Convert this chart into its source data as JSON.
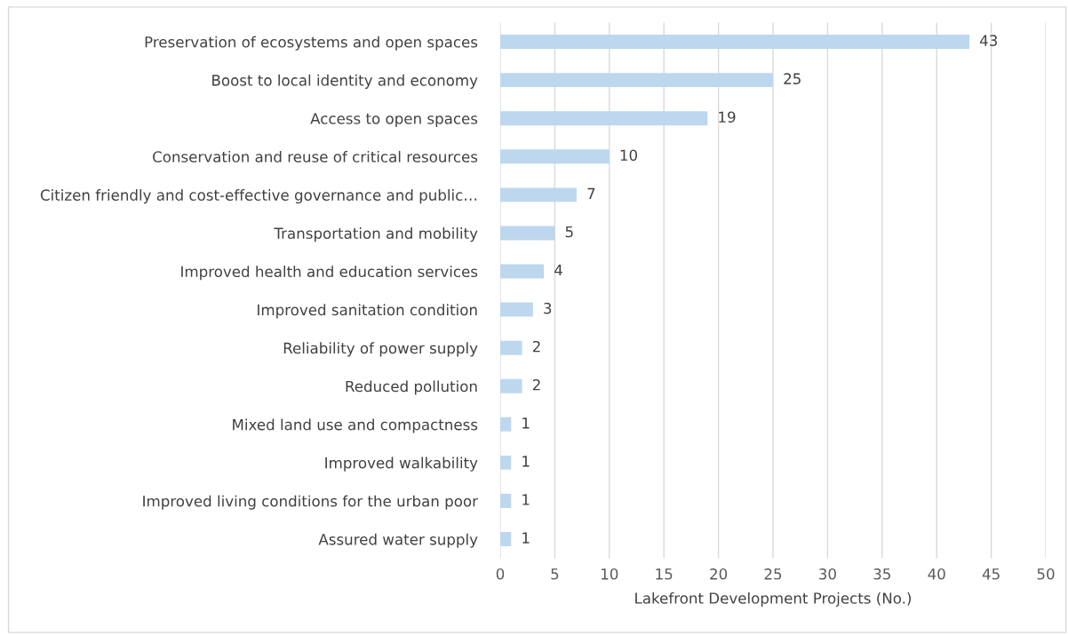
{
  "chart_data": {
    "type": "bar",
    "orientation": "horizontal",
    "xlabel": "Lakefront Development Projects (No.)",
    "categories": [
      "Preservation of ecosystems and open spaces",
      "Boost to local identity and economy",
      "Access to open spaces",
      "Conservation and reuse of critical resources",
      "Citizen friendly and cost-effective governance and public…",
      "Transportation and mobility",
      "Improved health and education services",
      "Improved sanitation condition",
      "Reliability of power supply",
      "Reduced pollution",
      "Mixed land use and compactness",
      "Improved walkability",
      "Improved living conditions for the urban poor",
      "Assured water supply"
    ],
    "values": [
      43,
      25,
      19,
      10,
      7,
      5,
      4,
      3,
      2,
      2,
      1,
      1,
      1,
      1
    ],
    "color": "#bdd7ee",
    "data_labels": true,
    "grid": "x",
    "legend": false,
    "xlim": [
      0,
      50
    ],
    "xticks": [
      0,
      5,
      10,
      15,
      20,
      25,
      30,
      35,
      40,
      45,
      50
    ]
  }
}
